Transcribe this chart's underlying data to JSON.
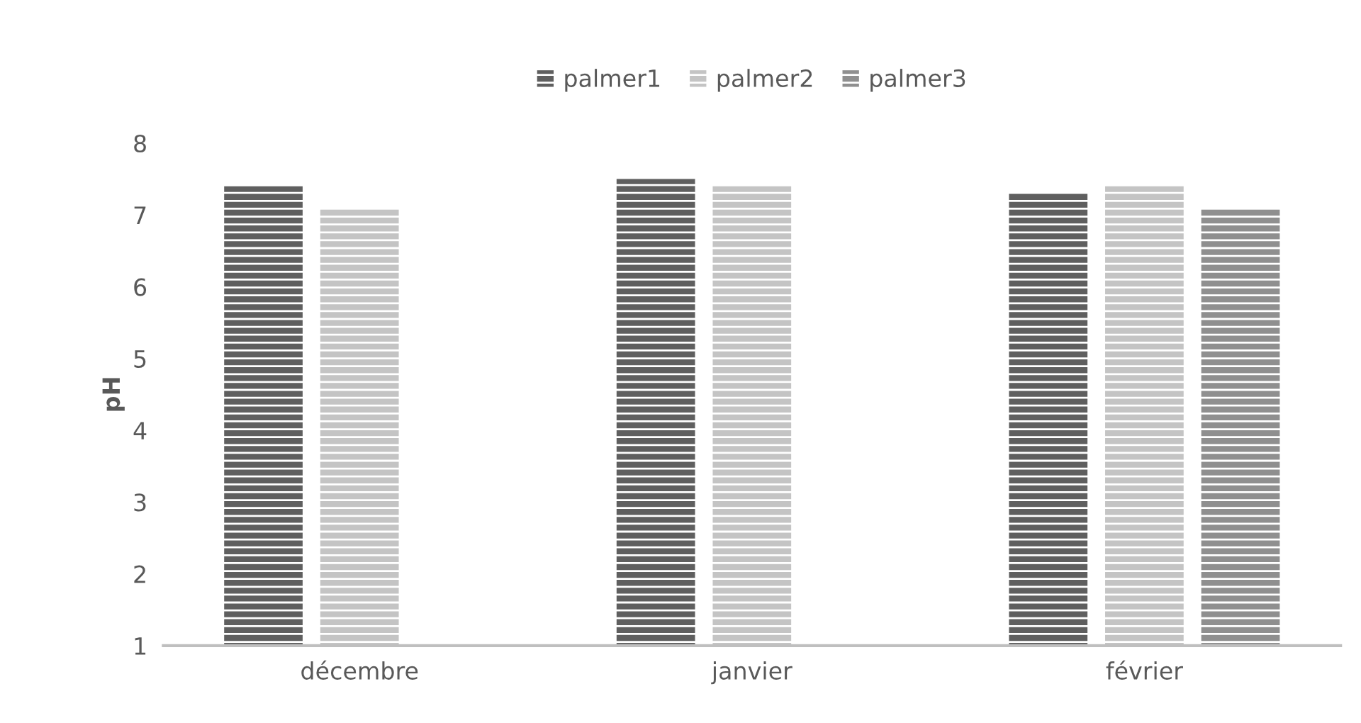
{
  "chart_data": {
    "type": "bar",
    "ylabel": "pH",
    "categories": [
      "décembre",
      "janvier",
      "février"
    ],
    "series": [
      {
        "name": "palmer1",
        "color": "#5f5f5f",
        "values": [
          7.4,
          7.5,
          7.3
        ]
      },
      {
        "name": "palmer2",
        "color": "#c4c4c4",
        "values": [
          7.1,
          7.4,
          7.4
        ]
      },
      {
        "name": "palmer3",
        "color": "#8f8f8f",
        "values": [
          null,
          null,
          7.1
        ]
      }
    ],
    "ylim": [
      1,
      8
    ],
    "yticks": [
      1,
      2,
      3,
      4,
      5,
      6,
      7,
      8
    ],
    "grid": false,
    "legend": "top"
  }
}
